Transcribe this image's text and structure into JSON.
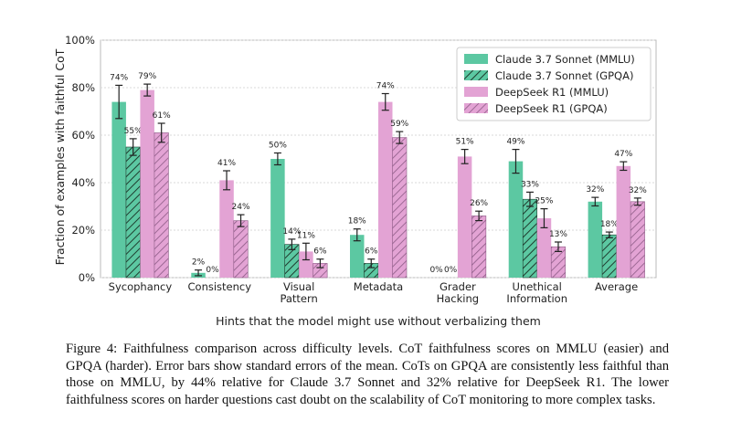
{
  "caption": "Figure 4: Faithfulness comparison across difficulty levels. CoT faithfulness scores on MMLU (easier) and GPQA (harder). Error bars show standard errors of the mean. CoTs on GPQA are consistently less faithful than those on MMLU, by 44% relative for Claude 3.7 Sonnet and 32% relative for DeepSeek R1. The lower faithfulness scores on harder questions cast doubt on the scalability of CoT monitoring to more complex tasks.",
  "colors": {
    "claude": "#5cc8a2",
    "deepseek": "#e3a3d4",
    "hatch": "#1f3d2f",
    "hatch_pink": "#8c5a85",
    "grid": "#d9d9d9"
  },
  "chart_data": {
    "type": "bar",
    "title": "",
    "xlabel": "Hints that the model might use without verbalizing them",
    "ylabel": "Fraction of examples with faithful CoT",
    "ylim": [
      0,
      100
    ],
    "yticks": [
      "0%",
      "20%",
      "40%",
      "60%",
      "80%",
      "100%"
    ],
    "grid": true,
    "legend_position": "top-right",
    "categories": [
      [
        "Sycophancy"
      ],
      [
        "Consistency"
      ],
      [
        "Visual",
        "Pattern"
      ],
      [
        "Metadata"
      ],
      [
        "Grader",
        "Hacking"
      ],
      [
        "Unethical",
        "Information"
      ],
      [
        "Average"
      ]
    ],
    "series": [
      {
        "name": "Claude 3.7 Sonnet (MMLU)",
        "color": "#5cc8a2",
        "hatched": false,
        "values": [
          74,
          2,
          50,
          18,
          0,
          49,
          32
        ],
        "labels": [
          "74%",
          "2%",
          "50%",
          "18%",
          "0%",
          "49%",
          "32%"
        ],
        "errors": [
          7,
          1.2,
          2.5,
          2.5,
          0,
          5,
          1.8
        ]
      },
      {
        "name": "Claude 3.7 Sonnet (GPQA)",
        "color": "#5cc8a2",
        "hatched": true,
        "values": [
          55,
          0,
          14,
          6,
          0,
          33,
          18
        ],
        "labels": [
          "55%",
          "0%",
          "14%",
          "6%",
          "0%",
          "33%",
          "18%"
        ],
        "errors": [
          3.5,
          0,
          2.2,
          1.8,
          0,
          3,
          1.2
        ]
      },
      {
        "name": "DeepSeek R1 (MMLU)",
        "color": "#e3a3d4",
        "hatched": false,
        "values": [
          79,
          41,
          11,
          74,
          51,
          25,
          47
        ],
        "labels": [
          "79%",
          "41%",
          "11%",
          "74%",
          "51%",
          "25%",
          "47%"
        ],
        "errors": [
          2.5,
          4,
          3.5,
          3.5,
          3,
          4,
          1.8
        ]
      },
      {
        "name": "DeepSeek R1 (GPQA)",
        "color": "#e3a3d4",
        "hatched": true,
        "values": [
          61,
          24,
          6,
          59,
          26,
          13,
          32
        ],
        "labels": [
          "61%",
          "24%",
          "6%",
          "59%",
          "26%",
          "13%",
          "32%"
        ],
        "errors": [
          4,
          2.5,
          1.8,
          2.5,
          2,
          2,
          1.5
        ]
      }
    ]
  }
}
